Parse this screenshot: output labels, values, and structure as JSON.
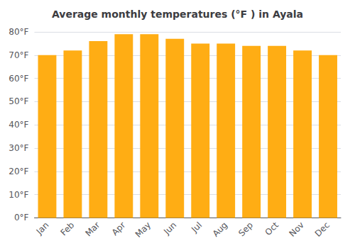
{
  "chart_data": {
    "type": "bar",
    "title": "Average monthly temperatures (°F ) in Ayala",
    "categories": [
      "Jan",
      "Feb",
      "Mar",
      "Apr",
      "May",
      "Jun",
      "Jul",
      "Aug",
      "Sep",
      "Oct",
      "Nov",
      "Dec"
    ],
    "values": [
      70,
      72,
      76,
      79,
      79,
      77,
      75,
      75,
      74,
      74,
      72,
      70
    ],
    "color": "#ffad14",
    "ylim": [
      0,
      80
    ],
    "yticks": [
      {
        "value": 0,
        "label": "0°F"
      },
      {
        "value": 10,
        "label": "10°F"
      },
      {
        "value": 20,
        "label": "20°F"
      },
      {
        "value": 30,
        "label": "30°F"
      },
      {
        "value": 40,
        "label": "40°F"
      },
      {
        "value": 50,
        "label": "50°F"
      },
      {
        "value": 60,
        "label": "60°F"
      },
      {
        "value": 70,
        "label": "70°F"
      },
      {
        "value": 80,
        "label": "80°F"
      }
    ],
    "grid": true
  }
}
